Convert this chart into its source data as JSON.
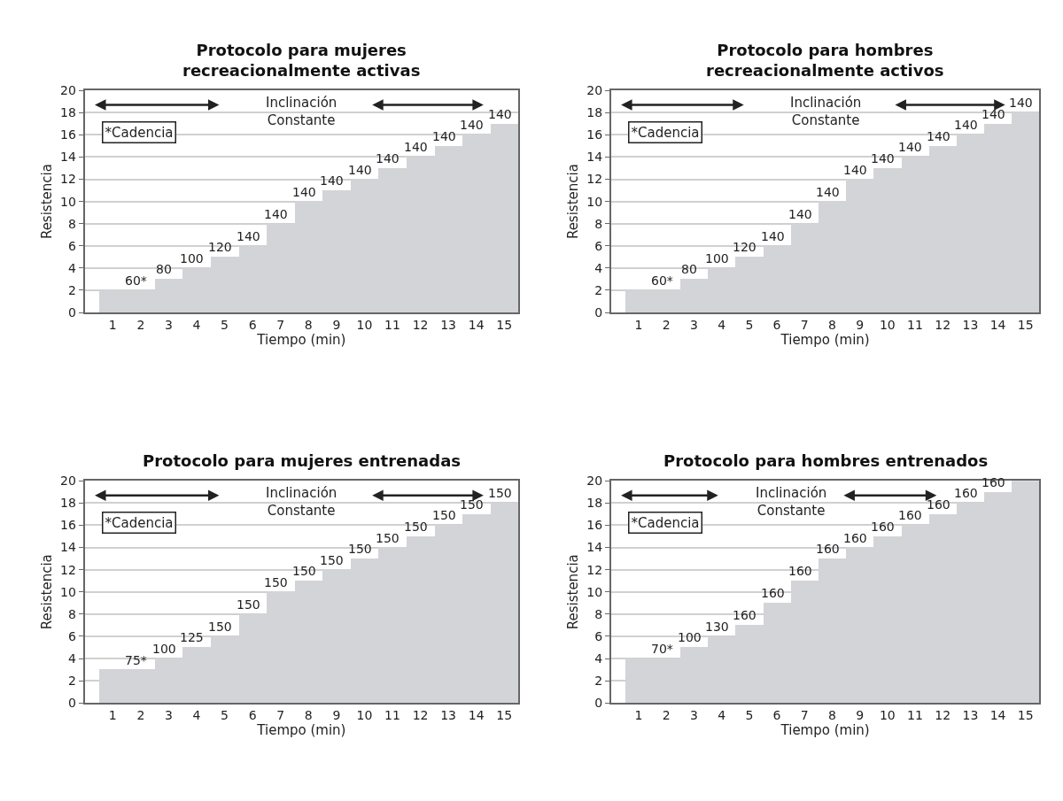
{
  "chart_data": [
    {
      "type": "bar",
      "title": "Protocolo para mujeres recreacionalmente activas",
      "xlabel": "Tiempo (min)",
      "ylabel": "Resistencia",
      "x": [
        1,
        2,
        3,
        4,
        5,
        6,
        7,
        8,
        9,
        10,
        11,
        12,
        13,
        14,
        15
      ],
      "series": [
        {
          "color": "#d3d4d8",
          "values": [
            2,
            2,
            3,
            4,
            5,
            6,
            8,
            10,
            11,
            12,
            13,
            14,
            15,
            16,
            17
          ]
        }
      ],
      "xlim": [
        0,
        15.5
      ],
      "xticks": [
        1,
        2,
        3,
        4,
        5,
        6,
        7,
        8,
        9,
        10,
        11,
        12,
        13,
        14,
        15
      ],
      "ylim": [
        0,
        20
      ],
      "yticks": [
        0,
        2,
        4,
        6,
        8,
        10,
        12,
        14,
        16,
        18,
        20
      ],
      "grid": "y",
      "annotations": [
        "Inclinación Constante",
        "*Cadencia",
        {
          "text": "60*",
          "x": 2,
          "y": 2
        },
        {
          "text": "80",
          "x": 3,
          "y": 3
        },
        {
          "text": "100",
          "x": 4,
          "y": 4
        },
        {
          "text": "120",
          "x": 5,
          "y": 5
        },
        {
          "text": "140",
          "x": 6,
          "y": 6
        },
        {
          "text": "140",
          "x": 7,
          "y": 8
        },
        {
          "text": "140",
          "x": 8,
          "y": 10
        },
        {
          "text": "140",
          "x": 9,
          "y": 11
        },
        {
          "text": "140",
          "x": 10,
          "y": 12
        },
        {
          "text": "140",
          "x": 11,
          "y": 13
        },
        {
          "text": "140",
          "x": 12,
          "y": 14
        },
        {
          "text": "140",
          "x": 13,
          "y": 15
        },
        {
          "text": "140",
          "x": 14,
          "y": 16
        },
        {
          "text": "140",
          "x": 15,
          "y": 17
        }
      ]
    },
    {
      "type": "bar",
      "title": "Protocolo para hombres recreacionalmente activos",
      "xlabel": "Tiempo (min)",
      "ylabel": "Resistencia",
      "x": [
        1,
        2,
        3,
        4,
        5,
        6,
        7,
        8,
        9,
        10,
        11,
        12,
        13,
        14,
        15
      ],
      "series": [
        {
          "color": "#d3d4d8",
          "values": [
            2,
            2,
            3,
            4,
            5,
            6,
            8,
            10,
            12,
            13,
            14,
            15,
            16,
            17,
            18
          ]
        }
      ],
      "xlim": [
        0,
        15.5
      ],
      "xticks": [
        1,
        2,
        3,
        4,
        5,
        6,
        7,
        8,
        9,
        10,
        11,
        12,
        13,
        14,
        15
      ],
      "ylim": [
        0,
        20
      ],
      "yticks": [
        0,
        2,
        4,
        6,
        8,
        10,
        12,
        14,
        16,
        18,
        20
      ],
      "grid": "y",
      "annotations": [
        "Inclinación Constante",
        "*Cadencia",
        {
          "text": "60*",
          "x": 2,
          "y": 2
        },
        {
          "text": "80",
          "x": 3,
          "y": 3
        },
        {
          "text": "100",
          "x": 4,
          "y": 4
        },
        {
          "text": "120",
          "x": 5,
          "y": 5
        },
        {
          "text": "140",
          "x": 6,
          "y": 6
        },
        {
          "text": "140",
          "x": 7,
          "y": 8
        },
        {
          "text": "140",
          "x": 8,
          "y": 10
        },
        {
          "text": "140",
          "x": 9,
          "y": 12
        },
        {
          "text": "140",
          "x": 10,
          "y": 13
        },
        {
          "text": "140",
          "x": 11,
          "y": 14
        },
        {
          "text": "140",
          "x": 12,
          "y": 15
        },
        {
          "text": "140",
          "x": 13,
          "y": 16
        },
        {
          "text": "140",
          "x": 14,
          "y": 17
        },
        {
          "text": "140",
          "x": 15,
          "y": 18
        }
      ]
    },
    {
      "type": "bar",
      "title": "Protocolo para mujeres entrenadas",
      "xlabel": "Tiempo (min)",
      "ylabel": "Resistencia",
      "x": [
        1,
        2,
        3,
        4,
        5,
        6,
        7,
        8,
        9,
        10,
        11,
        12,
        13,
        14,
        15
      ],
      "series": [
        {
          "color": "#d3d4d8",
          "values": [
            3,
            3,
            4,
            5,
            6,
            8,
            10,
            11,
            12,
            13,
            14,
            15,
            16,
            17,
            18
          ]
        }
      ],
      "xlim": [
        0,
        15.5
      ],
      "xticks": [
        1,
        2,
        3,
        4,
        5,
        6,
        7,
        8,
        9,
        10,
        11,
        12,
        13,
        14,
        15
      ],
      "ylim": [
        0,
        20
      ],
      "yticks": [
        0,
        2,
        4,
        6,
        8,
        10,
        12,
        14,
        16,
        18,
        20
      ],
      "grid": "y",
      "annotations": [
        "Inclinación Constante",
        "*Cadencia",
        {
          "text": "75*",
          "x": 2,
          "y": 3
        },
        {
          "text": "100",
          "x": 3,
          "y": 4
        },
        {
          "text": "125",
          "x": 4,
          "y": 5
        },
        {
          "text": "150",
          "x": 5,
          "y": 6
        },
        {
          "text": "150",
          "x": 6,
          "y": 8
        },
        {
          "text": "150",
          "x": 7,
          "y": 10
        },
        {
          "text": "150",
          "x": 8,
          "y": 11
        },
        {
          "text": "150",
          "x": 9,
          "y": 12
        },
        {
          "text": "150",
          "x": 10,
          "y": 13
        },
        {
          "text": "150",
          "x": 11,
          "y": 14
        },
        {
          "text": "150",
          "x": 12,
          "y": 15
        },
        {
          "text": "150",
          "x": 13,
          "y": 16
        },
        {
          "text": "150",
          "x": 14,
          "y": 17
        },
        {
          "text": "150",
          "x": 15,
          "y": 18
        }
      ]
    },
    {
      "type": "bar",
      "title": "Protocolo para hombres entrenados",
      "xlabel": "Tiempo (min)",
      "ylabel": "Resistencia",
      "x": [
        1,
        2,
        3,
        4,
        5,
        6,
        7,
        8,
        9,
        10,
        11,
        12,
        13,
        14,
        15
      ],
      "series": [
        {
          "color": "#d3d4d8",
          "values": [
            4,
            4,
            5,
            6,
            7,
            9,
            11,
            13,
            14,
            15,
            16,
            17,
            18,
            19,
            20
          ]
        }
      ],
      "xlim": [
        0,
        15.5
      ],
      "xticks": [
        1,
        2,
        3,
        4,
        5,
        6,
        7,
        8,
        9,
        10,
        11,
        12,
        13,
        14,
        15
      ],
      "ylim": [
        0,
        20
      ],
      "yticks": [
        0,
        2,
        4,
        6,
        8,
        10,
        12,
        14,
        16,
        18,
        20
      ],
      "grid": "y",
      "annotations": [
        "Inclinación Constante",
        "*Cadencia",
        {
          "text": "70*",
          "x": 2,
          "y": 4
        },
        {
          "text": "100",
          "x": 3,
          "y": 5
        },
        {
          "text": "130",
          "x": 4,
          "y": 6
        },
        {
          "text": "160",
          "x": 5,
          "y": 7
        },
        {
          "text": "160",
          "x": 6,
          "y": 9
        },
        {
          "text": "160",
          "x": 7,
          "y": 11
        },
        {
          "text": "160",
          "x": 8,
          "y": 13
        },
        {
          "text": "160",
          "x": 9,
          "y": 14
        },
        {
          "text": "160",
          "x": 10,
          "y": 15
        },
        {
          "text": "160",
          "x": 11,
          "y": 16
        },
        {
          "text": "160",
          "x": 12,
          "y": 17
        },
        {
          "text": "160",
          "x": 13,
          "y": 18
        },
        {
          "text": "160",
          "x": 14,
          "y": 19
        }
      ]
    }
  ]
}
